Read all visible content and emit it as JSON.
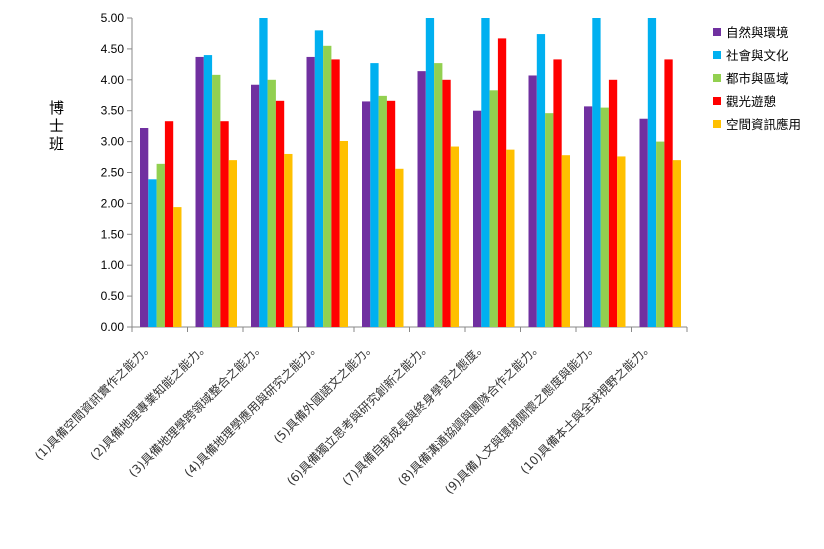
{
  "chart_data": {
    "type": "bar",
    "title": "",
    "ylabel": "博士班",
    "xlabel": "",
    "ylim": [
      0,
      5
    ],
    "yticks": [
      "0.00",
      "0.50",
      "1.00",
      "1.50",
      "2.00",
      "2.50",
      "3.00",
      "3.50",
      "4.00",
      "4.50",
      "5.00"
    ],
    "grid": false,
    "legend_position": "right",
    "categories": [
      "(1)具備空間資訊實作之能力。",
      "(2)具備地理專業知能之能力。",
      "(3)具備地理學跨領域整合之能力。",
      "(4)具備地理學應用與研究之能力。",
      "(5)具備外國語文之能力。",
      "(6)具備獨立思考與研究創新之能力。",
      "(7)具備自我成長與終身學習之態度。",
      "(8)具備溝通協調與團隊合作之能力。",
      "(9)具備人文與環境關懷之態度與能力。",
      "(10)具備本土與全球視野之能力。"
    ],
    "series": [
      {
        "name": "自然與環境",
        "color": "#7030A0",
        "values": [
          3.22,
          4.37,
          3.92,
          4.37,
          3.65,
          4.14,
          3.5,
          4.07,
          3.57,
          3.37
        ]
      },
      {
        "name": "社會與文化",
        "color": "#00B0F0",
        "values": [
          2.39,
          4.4,
          5.0,
          4.8,
          4.27,
          5.0,
          5.0,
          4.74,
          5.0,
          5.0
        ]
      },
      {
        "name": "都市與區域",
        "color": "#92D050",
        "values": [
          2.64,
          4.08,
          4.0,
          4.55,
          3.74,
          4.27,
          3.83,
          3.46,
          3.55,
          3.0
        ]
      },
      {
        "name": "觀光遊憩",
        "color": "#FF0000",
        "values": [
          3.33,
          3.33,
          3.66,
          4.33,
          3.66,
          4.0,
          4.67,
          4.33,
          4.0,
          4.33
        ]
      },
      {
        "name": "空間資訊應用",
        "color": "#FFC000",
        "values": [
          1.94,
          2.7,
          2.8,
          3.01,
          2.56,
          2.92,
          2.87,
          2.78,
          2.76,
          2.7
        ]
      }
    ]
  }
}
